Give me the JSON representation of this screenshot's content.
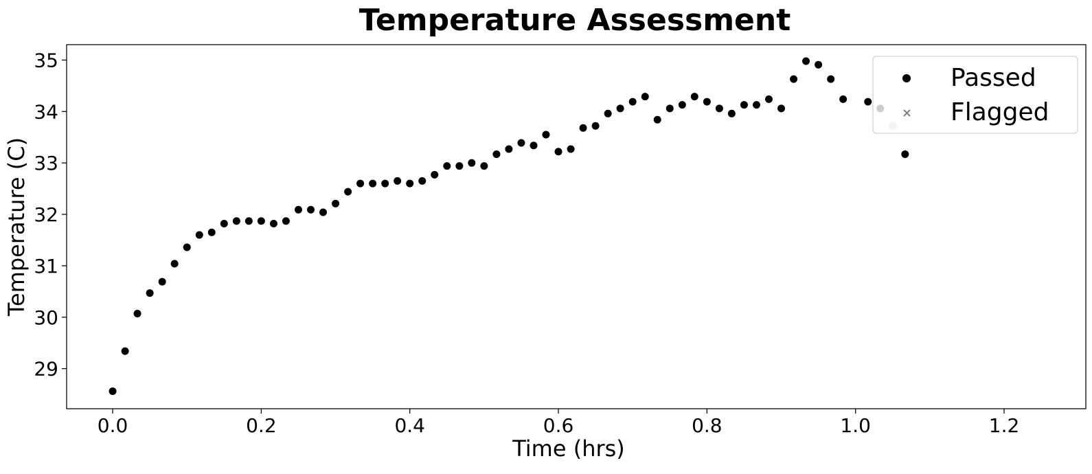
{
  "chart_data": {
    "type": "scatter",
    "title": "Temperature Assessment",
    "xlabel": "Time (hrs)",
    "ylabel": "Temperature (C)",
    "xlim": [
      -0.062,
      1.31
    ],
    "ylim": [
      28.22,
      35.3
    ],
    "xticks": [
      0.0,
      0.2,
      0.4,
      0.6,
      0.8,
      1.0,
      1.2
    ],
    "xtick_labels": [
      "0.0",
      "0.2",
      "0.4",
      "0.6",
      "0.8",
      "1.0",
      "1.2"
    ],
    "yticks": [
      29,
      30,
      31,
      32,
      33,
      34,
      35
    ],
    "ytick_labels": [
      "29",
      "30",
      "31",
      "32",
      "33",
      "34",
      "35"
    ],
    "grid": false,
    "legend_position": "top-right",
    "colors": {
      "passed": "#000000",
      "flagged": "#808080",
      "faded_point": "#c0c0c0"
    },
    "series": [
      {
        "name": "Passed",
        "marker": "circle",
        "x": [
          0.0,
          0.0167,
          0.0333,
          0.05,
          0.0667,
          0.0833,
          0.1,
          0.1167,
          0.1333,
          0.15,
          0.1667,
          0.1833,
          0.2,
          0.2167,
          0.2333,
          0.25,
          0.2667,
          0.2833,
          0.3,
          0.3167,
          0.3333,
          0.35,
          0.3667,
          0.3833,
          0.4,
          0.4167,
          0.4333,
          0.45,
          0.4667,
          0.4833,
          0.5,
          0.5167,
          0.5333,
          0.55,
          0.5667,
          0.5833,
          0.6,
          0.6167,
          0.6333,
          0.65,
          0.6667,
          0.6833,
          0.7,
          0.7167,
          0.7333,
          0.75,
          0.7667,
          0.7833,
          0.8,
          0.8167,
          0.8333,
          0.85,
          0.8667,
          0.8833,
          0.9,
          0.9167,
          0.9333,
          0.95,
          0.9667,
          0.9833,
          1.0167,
          1.0333,
          1.05,
          1.0667
        ],
        "y": [
          28.56,
          29.34,
          30.07,
          30.47,
          30.69,
          31.04,
          31.36,
          31.6,
          31.65,
          31.82,
          31.87,
          31.87,
          31.87,
          31.82,
          31.87,
          32.09,
          32.09,
          32.04,
          32.21,
          32.44,
          32.6,
          32.6,
          32.6,
          32.65,
          32.6,
          32.65,
          32.77,
          32.94,
          32.94,
          33.0,
          32.94,
          33.17,
          33.27,
          33.39,
          33.34,
          33.55,
          33.22,
          33.27,
          33.68,
          33.72,
          33.96,
          34.06,
          34.19,
          34.29,
          33.84,
          34.06,
          34.13,
          34.29,
          34.19,
          34.06,
          33.96,
          34.13,
          34.13,
          34.24,
          34.06,
          34.63,
          34.98,
          34.91,
          34.63,
          34.24,
          34.19,
          34.06,
          33.72,
          33.17
        ]
      },
      {
        "name": "Flagged",
        "marker": "x",
        "x": [],
        "y": []
      }
    ]
  }
}
